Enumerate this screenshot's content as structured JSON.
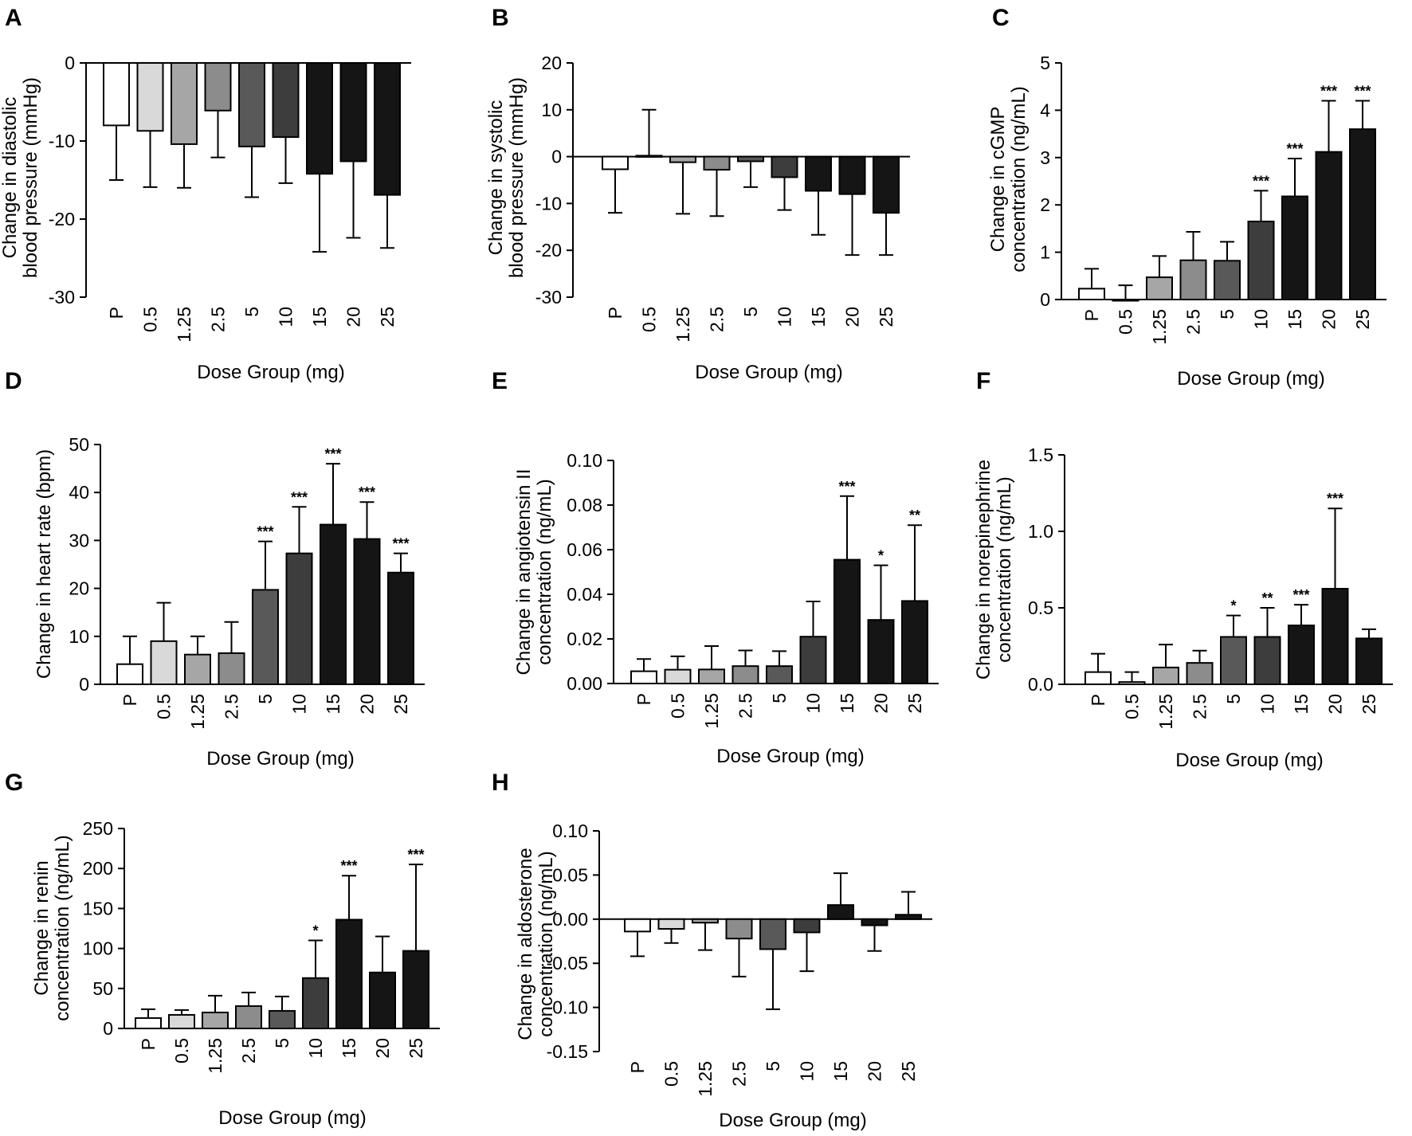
{
  "figure": {
    "categories": [
      "P",
      "0.5",
      "1.25",
      "2.5",
      "5",
      "10",
      "15",
      "20",
      "25"
    ],
    "bar_colors": [
      "#ffffff",
      "#d9d9d9",
      "#a6a6a6",
      "#8c8c8c",
      "#595959",
      "#3d3d3d",
      "#151515",
      "#151515",
      "#151515"
    ]
  },
  "chart_data": [
    {
      "letter": "A",
      "type": "bar",
      "title": "",
      "ylabel": [
        "Change in diastolic",
        "blood pressure (mmHg)"
      ],
      "xlabel": "Dose Group (mg)",
      "ylim": [
        -30,
        0
      ],
      "yticks": [
        0,
        -10,
        -20,
        -30
      ],
      "ytick_labels": [
        "0",
        "-10",
        "-20",
        "-30"
      ],
      "zero_line": true,
      "xlabels_bottom": true,
      "values": [
        -8.0,
        -8.7,
        -10.4,
        -6.1,
        -10.7,
        -9.5,
        -14.2,
        -12.6,
        -16.9
      ],
      "errors": [
        7.0,
        7.2,
        5.6,
        6.0,
        6.5,
        5.9,
        10.0,
        9.8,
        6.8
      ],
      "stars": [
        "",
        "",
        "",
        "",
        "",
        "",
        "",
        "",
        ""
      ]
    },
    {
      "letter": "B",
      "type": "bar",
      "title": "",
      "ylabel": [
        "Change in systolic",
        "blood pressure (mmHg)"
      ],
      "xlabel": "Dose Group (mg)",
      "ylim": [
        -30,
        20
      ],
      "yticks": [
        20,
        10,
        0,
        -10,
        -20,
        -30
      ],
      "ytick_labels": [
        "20",
        "10",
        "0",
        "-10",
        "-20",
        "-30"
      ],
      "zero_line": true,
      "xlabels_bottom": true,
      "values": [
        -2.7,
        0.2,
        -1.2,
        -2.8,
        -1.0,
        -4.4,
        -7.3,
        -8.0,
        -12.0
      ],
      "errors": [
        9.3,
        9.8,
        11.0,
        9.9,
        5.5,
        7.0,
        9.4,
        13.0,
        9.0
      ],
      "stars": [
        "",
        "",
        "",
        "",
        "",
        "",
        "",
        "",
        ""
      ]
    },
    {
      "letter": "C",
      "type": "bar",
      "title": "",
      "ylabel": [
        "Change in cGMP",
        "concentration (ng/mL)"
      ],
      "xlabel": "Dose Group (mg)",
      "ylim": [
        0,
        5
      ],
      "yticks": [
        0,
        1,
        2,
        3,
        4,
        5
      ],
      "ytick_labels": [
        "0",
        "1",
        "2",
        "3",
        "4",
        "5"
      ],
      "zero_line": false,
      "xlabels_bottom": true,
      "values": [
        0.23,
        0.0,
        0.47,
        0.83,
        0.82,
        1.65,
        2.18,
        3.12,
        3.6
      ],
      "errors": [
        0.42,
        0.3,
        0.45,
        0.6,
        0.4,
        0.65,
        0.8,
        1.08,
        0.6
      ],
      "stars": [
        "",
        "",
        "",
        "",
        "",
        "***",
        "***",
        "***",
        "***"
      ]
    },
    {
      "letter": "D",
      "type": "bar",
      "title": "",
      "ylabel": [
        "Change in heart rate (bpm)"
      ],
      "xlabel": "Dose Group (mg)",
      "ylim": [
        0,
        50
      ],
      "yticks": [
        0,
        10,
        20,
        30,
        40,
        50
      ],
      "ytick_labels": [
        "0",
        "10",
        "20",
        "30",
        "40",
        "50"
      ],
      "zero_line": false,
      "xlabels_bottom": true,
      "values": [
        4.2,
        9.0,
        6.2,
        6.5,
        19.7,
        27.3,
        33.3,
        30.3,
        23.3
      ],
      "errors": [
        5.8,
        8.0,
        3.8,
        6.5,
        10.1,
        9.7,
        12.7,
        7.7,
        4.0
      ],
      "stars": [
        "",
        "",
        "",
        "",
        "***",
        "***",
        "***",
        "***",
        "***"
      ]
    },
    {
      "letter": "E",
      "type": "bar",
      "title": "",
      "ylabel": [
        "Change in angiotensin II",
        "concentration (ng/mL)"
      ],
      "xlabel": "Dose Group (mg)",
      "ylim": [
        0,
        0.1
      ],
      "yticks": [
        0,
        0.02,
        0.04,
        0.06,
        0.08,
        0.1
      ],
      "ytick_labels": [
        "0.00",
        "0.02",
        "0.04",
        "0.06",
        "0.08",
        "0.10"
      ],
      "zero_line": false,
      "xlabels_bottom": true,
      "values": [
        0.0055,
        0.0062,
        0.0063,
        0.0078,
        0.0078,
        0.021,
        0.0555,
        0.0285,
        0.037
      ],
      "errors": [
        0.0055,
        0.006,
        0.0105,
        0.007,
        0.0067,
        0.0158,
        0.0285,
        0.0245,
        0.034
      ],
      "stars": [
        "",
        "",
        "",
        "",
        "",
        "",
        "***",
        "*",
        "**"
      ]
    },
    {
      "letter": "F",
      "type": "bar",
      "title": "",
      "ylabel": [
        "Change in norepinephrine",
        "concentration (ng/mL)"
      ],
      "xlabel": "Dose Group (mg)",
      "ylim": [
        0,
        1.5
      ],
      "yticks": [
        0,
        0.5,
        1.0,
        1.5
      ],
      "ytick_labels": [
        "0.0",
        "0.5",
        "1.0",
        "1.5"
      ],
      "zero_line": false,
      "xlabels_bottom": true,
      "values": [
        0.08,
        0.015,
        0.11,
        0.14,
        0.31,
        0.31,
        0.385,
        0.625,
        0.3
      ],
      "errors": [
        0.12,
        0.065,
        0.15,
        0.08,
        0.14,
        0.19,
        0.135,
        0.525,
        0.06
      ],
      "stars": [
        "",
        "",
        "",
        "",
        "*",
        "**",
        "***",
        "***",
        ""
      ]
    },
    {
      "letter": "G",
      "type": "bar",
      "title": "",
      "ylabel": [
        "Change in renin",
        "concentration (ng/mL)"
      ],
      "xlabel": "Dose Group (mg)",
      "ylim": [
        0,
        250
      ],
      "yticks": [
        0,
        50,
        100,
        150,
        200,
        250
      ],
      "ytick_labels": [
        "0",
        "50",
        "100",
        "150",
        "200",
        "250"
      ],
      "zero_line": false,
      "xlabels_bottom": true,
      "values": [
        13,
        17,
        20,
        28,
        22,
        63,
        136,
        70,
        97
      ],
      "errors": [
        11,
        6,
        21,
        17,
        18,
        47,
        55,
        45,
        108
      ],
      "stars": [
        "",
        "",
        "",
        "",
        "",
        "*",
        "***",
        "",
        "***"
      ]
    },
    {
      "letter": "H",
      "type": "bar",
      "title": "",
      "ylabel": [
        "Change in aldosterone",
        "concentration (ng/mL)"
      ],
      "xlabel": "Dose Group (mg)",
      "ylim": [
        -0.15,
        0.1
      ],
      "yticks": [
        0.1,
        0.05,
        0,
        -0.05,
        -0.1,
        -0.15
      ],
      "ytick_labels": [
        "0.10",
        "0.05",
        "0.00",
        "-0.05",
        "-0.10",
        "-0.15"
      ],
      "zero_line": true,
      "xlabels_bottom": true,
      "values": [
        -0.014,
        -0.011,
        -0.004,
        -0.022,
        -0.034,
        -0.015,
        0.016,
        -0.007,
        0.005
      ],
      "errors": [
        0.028,
        0.016,
        0.031,
        0.043,
        0.068,
        0.044,
        0.036,
        0.029,
        0.026
      ],
      "stars": [
        "",
        "",
        "",
        "",
        "",
        "",
        "",
        "",
        ""
      ]
    }
  ]
}
